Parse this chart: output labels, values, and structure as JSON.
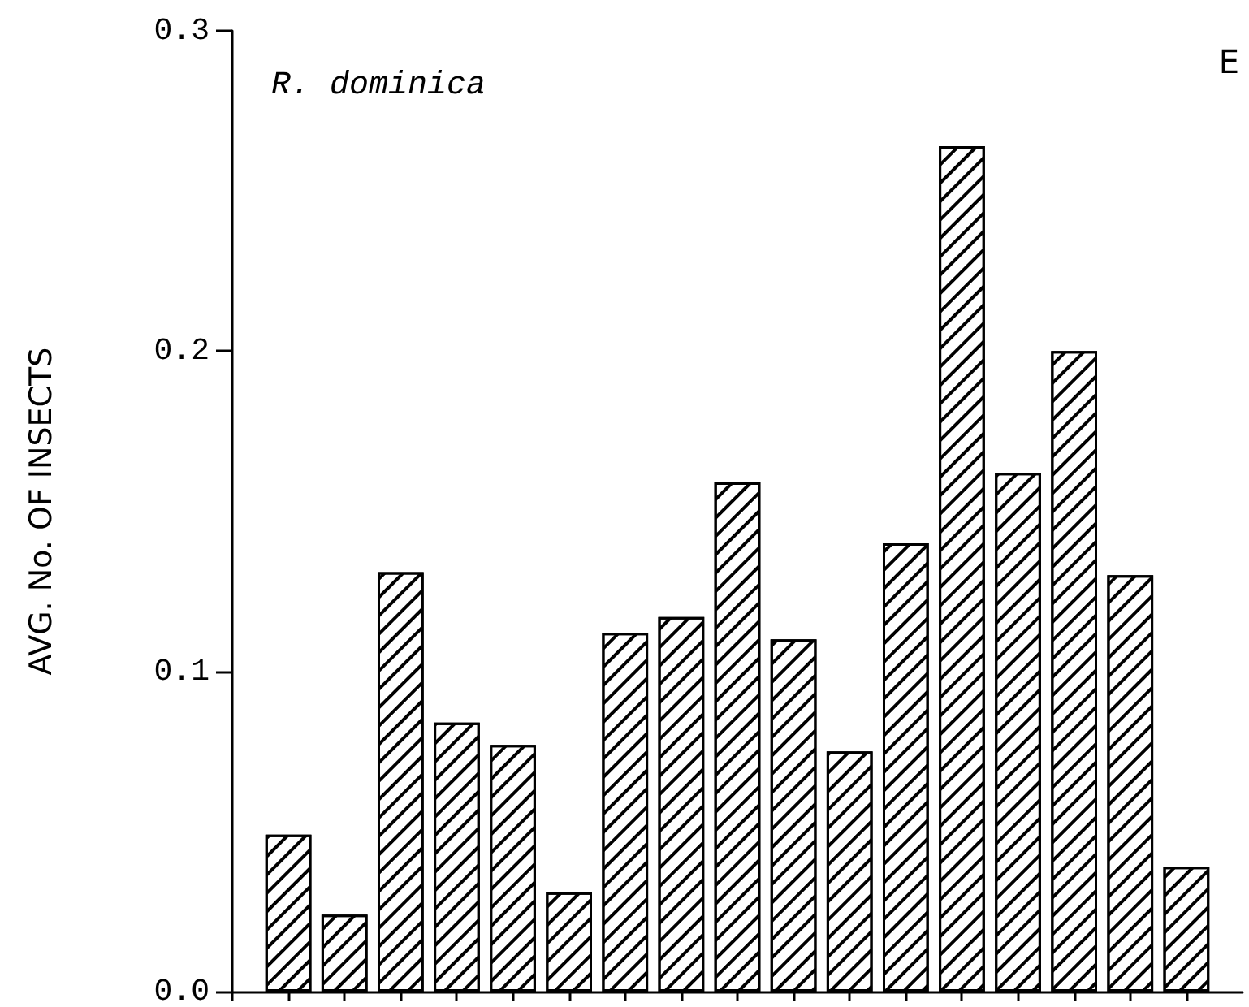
{
  "chart_data": {
    "type": "bar",
    "title": "R. dominica",
    "ylabel": "AVG. No. OF INSECTS",
    "annotations": [
      "E"
    ],
    "categories": [
      null,
      null,
      null,
      null,
      null,
      null,
      null,
      null,
      null,
      null,
      null,
      null,
      null,
      null,
      null,
      null,
      null
    ],
    "values": [
      0.049,
      0.024,
      0.131,
      0.084,
      0.077,
      0.031,
      0.112,
      0.117,
      0.159,
      0.11,
      0.075,
      0.14,
      0.264,
      0.162,
      0.2,
      0.13,
      0.039
    ],
    "color": "#000000",
    "ylim": [
      0,
      0.3
    ],
    "yticks": [
      {
        "value": 0,
        "label": "0.0"
      },
      0.1,
      0.2,
      0.3
    ],
    "grid": false
  }
}
